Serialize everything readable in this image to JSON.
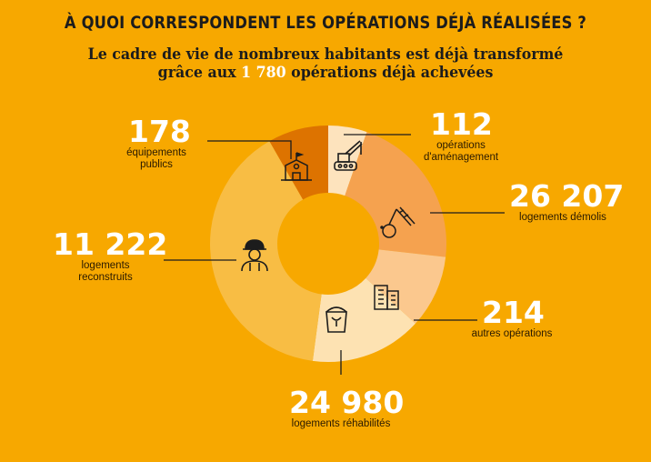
{
  "header": {
    "title": "À QUOI CORRESPONDENT LES OPÉRATIONS DÉJÀ RÉALISÉES ?",
    "subtitle_line1": "Le cadre de vie de nombreux habitants est déjà transformé",
    "subtitle_pre": "grâce aux ",
    "subtitle_highlight": "1 780",
    "subtitle_post": " opérations déjà achevées"
  },
  "colors": {
    "background": "#f7a800",
    "text_dark": "#1c1c1c",
    "value_text": "#ffffff"
  },
  "chart_data": {
    "type": "pie",
    "style": "donut",
    "segments": [
      {
        "key": "equip",
        "value_label": "178",
        "label_line1": "équipements",
        "label_line2": "publics",
        "share": 0.083,
        "color": "#dd7300",
        "icon": "school-building-icon"
      },
      {
        "key": "amenag",
        "value_label": "112",
        "label_line1": "opérations",
        "label_line2": "d'aménagement",
        "share": 0.053,
        "color": "#fde3bd",
        "icon": "crane-icon"
      },
      {
        "key": "demolis",
        "value_label": "26 207",
        "label_line1": "logements démolis",
        "label_line2": "",
        "share": 0.215,
        "color": "#f5a24f",
        "icon": "wrecking-ball-icon"
      },
      {
        "key": "autres",
        "value_label": "214",
        "label_line1": "autres opérations",
        "label_line2": "",
        "share": 0.1,
        "color": "#fbc88e",
        "icon": "buildings-icon"
      },
      {
        "key": "rehab",
        "value_label": "24 980",
        "label_line1": "logements réhabilités",
        "label_line2": "",
        "share": 0.153,
        "color": "#fde2b2",
        "icon": "paint-bucket-icon"
      },
      {
        "key": "reconstr",
        "value_label": "11 222",
        "label_line1": "logements",
        "label_line2": "reconstruits",
        "share": 0.396,
        "color": "#f8bd44",
        "icon": "worker-helmet-icon"
      }
    ]
  }
}
